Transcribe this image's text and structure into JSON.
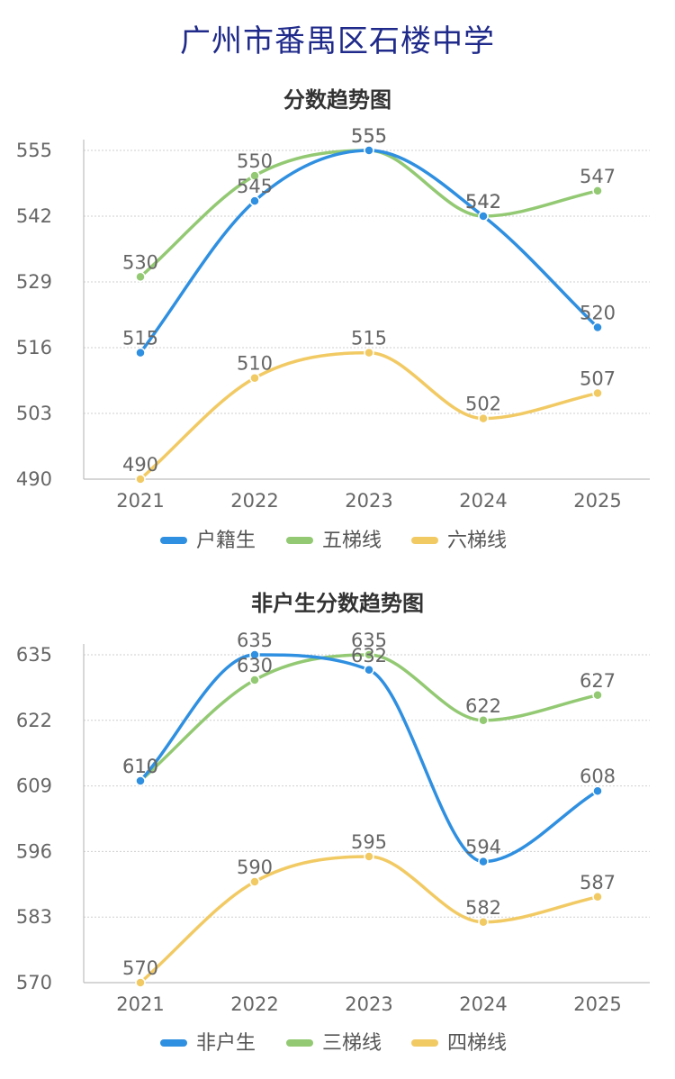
{
  "page": {
    "title": "广州市番禺区石楼中学"
  },
  "chart_data": [
    {
      "type": "line",
      "title": "分数趋势图",
      "categories": [
        "2021",
        "2022",
        "2023",
        "2024",
        "2025"
      ],
      "ylim": [
        490,
        555
      ],
      "yticks": [
        490,
        503,
        516,
        529,
        542,
        555
      ],
      "grid": true,
      "legend": "bottom",
      "series": [
        {
          "name": "户籍生",
          "color": "#2f8fe0",
          "values": [
            515,
            545,
            555,
            542,
            520
          ]
        },
        {
          "name": "五梯线",
          "color": "#93c973",
          "values": [
            530,
            550,
            555,
            542,
            547
          ]
        },
        {
          "name": "六梯线",
          "color": "#f2ca64",
          "values": [
            490,
            510,
            515,
            502,
            507
          ]
        }
      ]
    },
    {
      "type": "line",
      "title": "非户生分数趋势图",
      "categories": [
        "2021",
        "2022",
        "2023",
        "2024",
        "2025"
      ],
      "ylim": [
        570,
        635
      ],
      "yticks": [
        570,
        583,
        596,
        609,
        622,
        635
      ],
      "grid": true,
      "legend": "bottom",
      "series": [
        {
          "name": "非户生",
          "color": "#2f8fe0",
          "values": [
            610,
            635,
            632,
            594,
            608
          ]
        },
        {
          "name": "三梯线",
          "color": "#93c973",
          "values": [
            610,
            630,
            635,
            622,
            627
          ]
        },
        {
          "name": "四梯线",
          "color": "#f2ca64",
          "values": [
            570,
            590,
            595,
            582,
            587
          ]
        }
      ]
    }
  ]
}
